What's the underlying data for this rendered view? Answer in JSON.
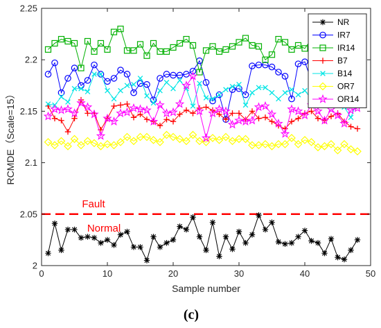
{
  "chart_data": {
    "type": "line",
    "title": "",
    "xlabel": "Sample number",
    "ylabel": "RCMDE（Scale=15）",
    "xlim": [
      0,
      50
    ],
    "ylim": [
      2,
      2.25
    ],
    "xticks": [
      0,
      10,
      20,
      30,
      40,
      50
    ],
    "yticks": [
      2,
      2.05,
      2.1,
      2.15,
      2.2,
      2.25
    ],
    "grid": false,
    "legend_position": "top-right",
    "caption": "(c)",
    "threshold": {
      "y": 2.05,
      "color": "#ff0000",
      "style": "dashed",
      "upper_label": "Fault",
      "lower_label": "Normal"
    },
    "x": [
      1,
      2,
      3,
      4,
      5,
      6,
      7,
      8,
      9,
      10,
      11,
      12,
      13,
      14,
      15,
      16,
      17,
      18,
      19,
      20,
      21,
      22,
      23,
      24,
      25,
      26,
      27,
      28,
      29,
      30,
      31,
      32,
      33,
      34,
      35,
      36,
      37,
      38,
      39,
      40,
      41,
      42,
      43,
      44,
      45,
      46,
      47,
      48
    ],
    "series": [
      {
        "name": "NR",
        "color": "#000000",
        "marker": "asterisk",
        "values": [
          2.012,
          2.041,
          2.015,
          2.035,
          2.035,
          2.027,
          2.028,
          2.027,
          2.022,
          2.025,
          2.02,
          2.03,
          2.033,
          2.018,
          2.018,
          2.005,
          2.028,
          2.018,
          2.022,
          2.025,
          2.038,
          2.035,
          2.047,
          2.028,
          2.015,
          2.042,
          2.009,
          2.028,
          2.016,
          2.033,
          2.022,
          2.03,
          2.049,
          2.035,
          2.042,
          2.023,
          2.021,
          2.022,
          2.028,
          2.034,
          2.024,
          2.022,
          2.012,
          2.026,
          2.008,
          2.006,
          2.015,
          2.025
        ]
      },
      {
        "name": "IR7",
        "color": "#0000ff",
        "marker": "circle",
        "values": [
          2.186,
          2.197,
          2.168,
          2.182,
          2.192,
          2.175,
          2.18,
          2.195,
          2.186,
          2.179,
          2.182,
          2.19,
          2.186,
          2.168,
          2.177,
          2.176,
          2.161,
          2.182,
          2.186,
          2.185,
          2.185,
          2.186,
          2.189,
          2.199,
          2.178,
          2.16,
          2.166,
          2.142,
          2.171,
          2.172,
          2.166,
          2.194,
          2.195,
          2.195,
          2.193,
          2.188,
          2.184,
          2.162,
          2.196,
          2.198,
          2.18,
          2.16,
          2.176,
          2.161,
          2.174,
          2.168,
          2.182,
          2.157
        ]
      },
      {
        "name": "IR14",
        "color": "#00b000",
        "marker": "square",
        "values": [
          2.21,
          2.216,
          2.22,
          2.218,
          2.216,
          2.192,
          2.218,
          2.208,
          2.216,
          2.21,
          2.227,
          2.23,
          2.209,
          2.209,
          2.215,
          2.204,
          2.216,
          2.208,
          2.208,
          2.212,
          2.216,
          2.22,
          2.214,
          2.188,
          2.209,
          2.213,
          2.208,
          2.21,
          2.213,
          2.217,
          2.221,
          2.214,
          2.213,
          2.2,
          2.205,
          2.22,
          2.217,
          2.21,
          2.214,
          2.211,
          2.22,
          2.222,
          2.222,
          2.21,
          2.219,
          2.222,
          2.22,
          2.22
        ]
      },
      {
        "name": "B7",
        "color": "#ff0000",
        "marker": "plus",
        "values": [
          2.155,
          2.143,
          2.141,
          2.13,
          2.143,
          2.161,
          2.148,
          2.148,
          2.132,
          2.143,
          2.155,
          2.156,
          2.157,
          2.144,
          2.147,
          2.142,
          2.14,
          2.136,
          2.142,
          2.14,
          2.147,
          2.151,
          2.148,
          2.153,
          2.154,
          2.151,
          2.147,
          2.142,
          2.148,
          2.148,
          2.142,
          2.15,
          2.143,
          2.144,
          2.14,
          2.136,
          2.133,
          2.14,
          2.143,
          2.148,
          2.15,
          2.143,
          2.141,
          2.145,
          2.148,
          2.14,
          2.135,
          2.133
        ]
      },
      {
        "name": "B14",
        "color": "#00e5e5",
        "marker": "x",
        "values": [
          2.157,
          2.156,
          2.164,
          2.159,
          2.172,
          2.172,
          2.169,
          2.186,
          2.186,
          2.17,
          2.162,
          2.17,
          2.175,
          2.176,
          2.182,
          2.165,
          2.158,
          2.17,
          2.178,
          2.172,
          2.18,
          2.172,
          2.155,
          2.177,
          2.163,
          2.162,
          2.166,
          2.171,
          2.174,
          2.176,
          2.156,
          2.168,
          2.173,
          2.173,
          2.168,
          2.162,
          2.168,
          2.171,
          2.166,
          2.17,
          2.162,
          2.162,
          2.166,
          2.171,
          2.16,
          2.154,
          2.144,
          2.16
        ]
      },
      {
        "name": "OR7",
        "color": "#ffff00",
        "marker": "diamond",
        "values": [
          2.12,
          2.117,
          2.121,
          2.116,
          2.123,
          2.117,
          2.121,
          2.119,
          2.116,
          2.118,
          2.117,
          2.12,
          2.125,
          2.121,
          2.125,
          2.125,
          2.122,
          2.12,
          2.127,
          2.125,
          2.123,
          2.121,
          2.127,
          2.121,
          2.12,
          2.124,
          2.122,
          2.125,
          2.121,
          2.123,
          2.123,
          2.117,
          2.117,
          2.118,
          2.116,
          2.118,
          2.118,
          2.124,
          2.118,
          2.122,
          2.12,
          2.115,
          2.116,
          2.118,
          2.112,
          2.118,
          2.113,
          2.111
        ]
      },
      {
        "name": "OR14",
        "color": "#ff00ff",
        "marker": "star",
        "values": [
          2.145,
          2.152,
          2.151,
          2.152,
          2.148,
          2.158,
          2.154,
          2.147,
          2.126,
          2.143,
          2.14,
          2.148,
          2.149,
          2.153,
          2.152,
          2.151,
          2.14,
          2.156,
          2.148,
          2.149,
          2.157,
          2.175,
          2.184,
          2.15,
          2.124,
          2.148,
          2.152,
          2.15,
          2.137,
          2.141,
          2.14,
          2.141,
          2.154,
          2.155,
          2.147,
          2.138,
          2.128,
          2.152,
          2.15,
          2.146,
          2.156,
          2.15,
          2.141,
          2.152,
          2.146,
          2.138,
          2.151,
          2.153
        ]
      }
    ]
  }
}
